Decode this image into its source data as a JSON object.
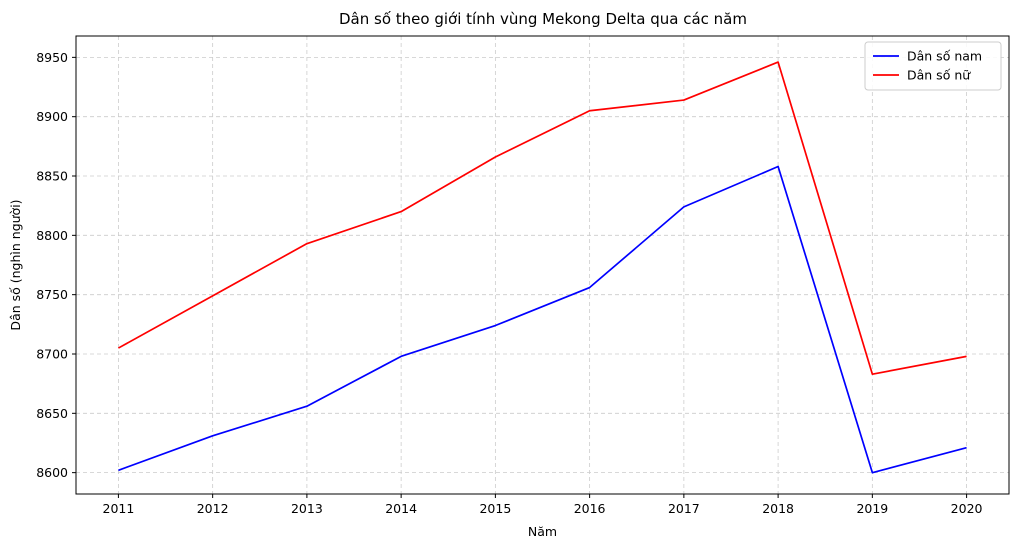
{
  "chart_data": {
    "type": "line",
    "title": "Dân số theo giới tính vùng Mekong Delta qua các năm",
    "xlabel": "Năm",
    "ylabel": "Dân số (nghìn người)",
    "x": [
      2011,
      2012,
      2013,
      2014,
      2015,
      2016,
      2017,
      2018,
      2019,
      2020
    ],
    "ylim": [
      8582,
      8968
    ],
    "yticks": [
      8600,
      8650,
      8700,
      8750,
      8800,
      8850,
      8900,
      8950
    ],
    "grid": true,
    "legend_position": "top-right",
    "series": [
      {
        "name": "Dân số nam",
        "color": "#0000ff",
        "values": [
          8602,
          8631,
          8656,
          8698,
          8724,
          8756,
          8824,
          8858,
          8600,
          8621
        ]
      },
      {
        "name": "Dân số nữ",
        "color": "#ff0000",
        "values": [
          8705,
          8749,
          8793,
          8820,
          8866,
          8905,
          8914,
          8946,
          8683,
          8698
        ]
      }
    ]
  }
}
